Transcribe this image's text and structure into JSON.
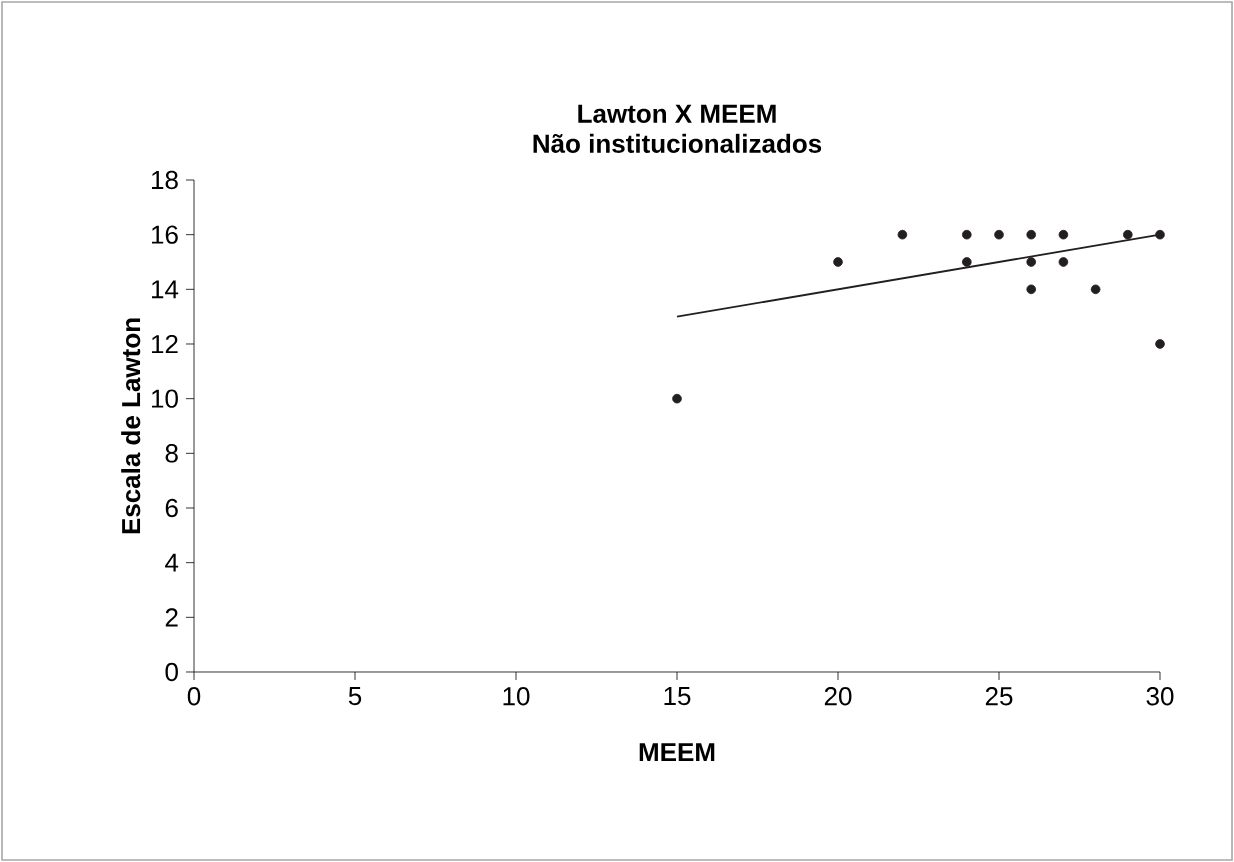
{
  "chart_data": {
    "type": "scatter",
    "title": "Lawton X MEEM\nNão institucionalizados",
    "xlabel": "MEEM",
    "ylabel": "Escala de Lawton",
    "xlim": [
      0,
      30
    ],
    "ylim": [
      0,
      18
    ],
    "xticks": [
      0,
      5,
      10,
      15,
      20,
      25,
      30
    ],
    "yticks": [
      0,
      2,
      4,
      6,
      8,
      10,
      12,
      14,
      16,
      18
    ],
    "grid": false,
    "legend": false,
    "series": [
      {
        "marker": "circle",
        "color": "#231f20",
        "x": [
          15,
          20,
          22,
          24,
          24,
          25,
          26,
          26,
          26,
          27,
          27,
          28,
          29,
          30,
          30
        ],
        "values": [
          10,
          15,
          16,
          16,
          15,
          16,
          16,
          15,
          14,
          16,
          15,
          14,
          16,
          16,
          12
        ]
      },
      {
        "type": "line",
        "marker": "none",
        "line_style": "solid",
        "color": "#231f20",
        "x": [
          15,
          30
        ],
        "values": [
          13,
          16
        ]
      }
    ]
  }
}
